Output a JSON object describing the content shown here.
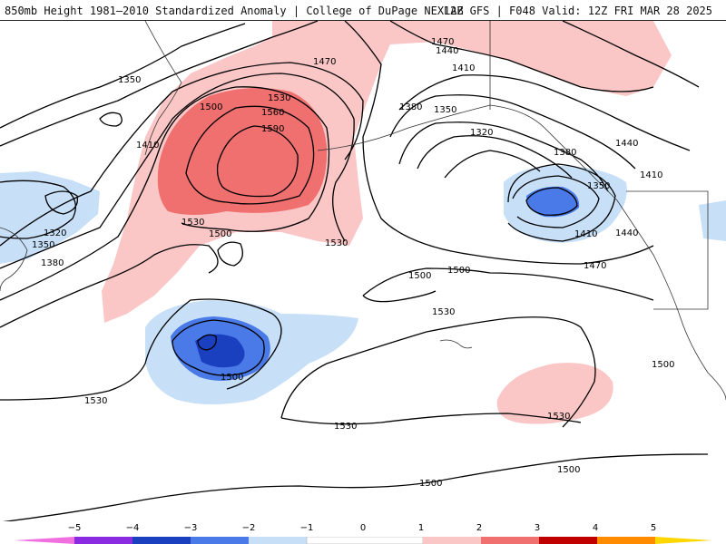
{
  "header": {
    "title": "850mb Height 1981–2010 Standardized Anomaly | College of DuPage NEXLAB",
    "run": "12Z GFS | F048 Valid: 12Z FRI MAR 28 2025"
  },
  "colors": {
    "m5": "#f070e0",
    "m4": "#8a2be2",
    "m3": "#1a3fbf",
    "m2": "#4a7ae8",
    "m1": "#c7e0f8",
    "zero": "#ffffff",
    "p1": "#fbc6c6",
    "p2": "#f07070",
    "p3": "#c00000",
    "p4": "#ff8c00",
    "p5": "#ffd700"
  },
  "colorbar": {
    "ticks": [
      "−5",
      "−4",
      "−3",
      "−2",
      "−1",
      "0",
      "1",
      "2",
      "3",
      "4",
      "5"
    ]
  },
  "contour_labels": [
    "1350",
    "1410",
    "1470",
    "1440",
    "1410",
    "1380",
    "1350",
    "1320",
    "1500",
    "1530",
    "1560",
    "1590",
    "1470",
    "1380",
    "1440",
    "1410",
    "1350",
    "1410",
    "1440",
    "1470",
    "1320",
    "1350",
    "1380",
    "1530",
    "1500",
    "1530",
    "1500",
    "1500",
    "1500",
    "1530",
    "1530",
    "1530",
    "1500",
    "1530",
    "1500",
    "1500"
  ]
}
